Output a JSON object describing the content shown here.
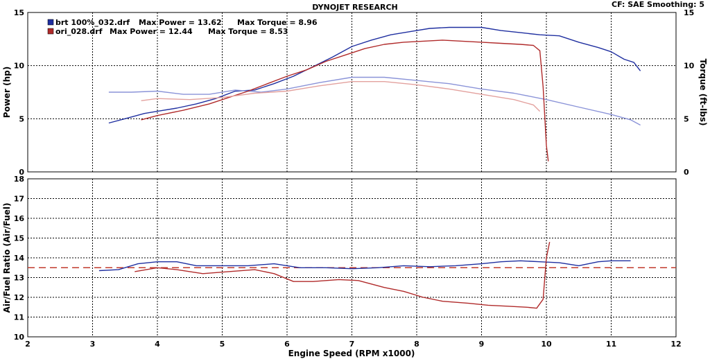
{
  "header": {
    "title": "DYNOJET RESEARCH",
    "settings": "CF: SAE  Smoothing: 5"
  },
  "legend": [
    {
      "file": "brt 100%_032.drf",
      "power_text": "Max Power = 13.62",
      "torque_text": "Max Torque = 8.96",
      "color": "#1f2fa0"
    },
    {
      "file": "ori_028.drf",
      "power_text": "Max Power = 12.44",
      "torque_text": "Max Torque = 8.53",
      "color": "#b02a2a"
    }
  ],
  "axes": {
    "power_label": "Power (hp)",
    "torque_label": "Torque (ft-lbs)",
    "afr_label": "Air/Fuel Ratio (Air/Fuel)",
    "x_label": "Engine Speed (RPM x1000)"
  },
  "chart_data": [
    {
      "type": "line",
      "panel": "power-torque",
      "xlabel": "Engine Speed (RPM x1000)",
      "ylabel": "Power (hp)",
      "y2label": "Torque (ft-lbs)",
      "xlim": [
        2,
        12
      ],
      "ylim": [
        0,
        15
      ],
      "y2lim": [
        0,
        15
      ],
      "xticks": [
        2,
        3,
        4,
        5,
        6,
        7,
        8,
        9,
        10,
        11,
        12
      ],
      "yticks": [
        0,
        5,
        10,
        15
      ],
      "y2ticks": [
        0,
        5,
        10,
        15
      ],
      "grid": true,
      "series": [
        {
          "name": "brt 100%_032.drf",
          "measure": "power",
          "color": "#1f2fa0",
          "x": [
            3.25,
            3.5,
            3.8,
            4.0,
            4.3,
            4.6,
            4.9,
            5.2,
            5.5,
            5.8,
            6.1,
            6.4,
            6.7,
            7.0,
            7.3,
            7.6,
            7.9,
            8.2,
            8.5,
            8.8,
            9.0,
            9.3,
            9.6,
            9.9,
            10.2,
            10.5,
            10.8,
            11.0,
            11.2,
            11.35,
            11.45
          ],
          "y": [
            4.6,
            5.0,
            5.5,
            5.7,
            6.0,
            6.4,
            6.9,
            7.6,
            7.7,
            8.3,
            9.0,
            9.9,
            10.8,
            11.8,
            12.4,
            12.9,
            13.2,
            13.5,
            13.6,
            13.6,
            13.6,
            13.3,
            13.1,
            12.9,
            12.8,
            12.2,
            11.7,
            11.3,
            10.6,
            10.3,
            9.5
          ]
        },
        {
          "name": "brt 100%_032.drf",
          "measure": "torque",
          "color": "#8a93d8",
          "x": [
            3.25,
            3.6,
            4.0,
            4.4,
            4.8,
            5.2,
            5.6,
            6.0,
            6.5,
            7.0,
            7.5,
            8.0,
            8.5,
            9.0,
            9.5,
            10.0,
            10.5,
            11.0,
            11.3,
            11.45
          ],
          "y": [
            7.5,
            7.5,
            7.6,
            7.3,
            7.3,
            7.7,
            7.5,
            7.8,
            8.4,
            8.9,
            8.9,
            8.6,
            8.3,
            7.8,
            7.4,
            6.8,
            6.1,
            5.4,
            4.9,
            4.4
          ]
        },
        {
          "name": "ori_028.drf",
          "measure": "power",
          "color": "#b02a2a",
          "x": [
            3.75,
            4.0,
            4.4,
            4.8,
            5.1,
            5.4,
            5.7,
            6.0,
            6.3,
            6.6,
            6.9,
            7.2,
            7.5,
            7.8,
            8.1,
            8.4,
            8.7,
            9.0,
            9.3,
            9.6,
            9.8,
            9.9,
            9.95,
            10.0,
            10.03
          ],
          "y": [
            4.9,
            5.3,
            5.8,
            6.4,
            7.0,
            7.6,
            8.3,
            9.0,
            9.6,
            10.4,
            11.0,
            11.6,
            12.0,
            12.2,
            12.3,
            12.4,
            12.3,
            12.2,
            12.1,
            12.0,
            11.9,
            11.4,
            8.0,
            2.5,
            1.0
          ]
        },
        {
          "name": "ori_028.drf",
          "measure": "torque",
          "color": "#e3a19e",
          "x": [
            3.75,
            4.0,
            4.5,
            5.0,
            5.5,
            6.0,
            6.5,
            7.0,
            7.5,
            8.0,
            8.5,
            9.0,
            9.5,
            9.8,
            9.9
          ],
          "y": [
            6.7,
            6.9,
            6.8,
            7.0,
            7.4,
            7.6,
            8.1,
            8.5,
            8.5,
            8.2,
            7.8,
            7.3,
            6.8,
            6.3,
            5.7
          ]
        }
      ]
    },
    {
      "type": "line",
      "panel": "air-fuel",
      "xlabel": "Engine Speed (RPM x1000)",
      "ylabel": "Air/Fuel Ratio (Air/Fuel)",
      "xlim": [
        2,
        12
      ],
      "ylim": [
        10,
        18
      ],
      "xticks": [
        2,
        3,
        4,
        5,
        6,
        7,
        8,
        9,
        10,
        11,
        12
      ],
      "yticks": [
        10,
        11,
        12,
        13,
        14,
        15,
        16,
        17,
        18
      ],
      "grid": true,
      "reference_line": {
        "y": 13.5,
        "color": "#c0392b",
        "style": "dashed"
      },
      "series": [
        {
          "name": "brt 100%_032.drf",
          "color": "#1f2fa0",
          "x": [
            3.1,
            3.4,
            3.7,
            4.0,
            4.3,
            4.6,
            5.0,
            5.4,
            5.8,
            6.2,
            6.6,
            7.0,
            7.4,
            7.8,
            8.2,
            8.6,
            9.0,
            9.3,
            9.6,
            9.9,
            10.2,
            10.5,
            10.8,
            11.0,
            11.3
          ],
          "y": [
            13.35,
            13.4,
            13.7,
            13.8,
            13.8,
            13.6,
            13.6,
            13.6,
            13.7,
            13.5,
            13.5,
            13.45,
            13.5,
            13.6,
            13.55,
            13.6,
            13.7,
            13.8,
            13.85,
            13.8,
            13.75,
            13.6,
            13.8,
            13.85,
            13.85
          ]
        },
        {
          "name": "ori_028.drf",
          "color": "#b02a2a",
          "x": [
            3.65,
            4.0,
            4.3,
            4.7,
            5.1,
            5.5,
            5.8,
            6.1,
            6.4,
            6.8,
            7.1,
            7.5,
            7.8,
            8.1,
            8.4,
            8.8,
            9.1,
            9.4,
            9.7,
            9.85,
            9.95,
            10.0,
            10.05
          ],
          "y": [
            13.3,
            13.5,
            13.4,
            13.2,
            13.3,
            13.4,
            13.2,
            12.8,
            12.8,
            12.9,
            12.85,
            12.5,
            12.3,
            12.0,
            11.8,
            11.7,
            11.6,
            11.55,
            11.5,
            11.45,
            11.9,
            14.0,
            14.8
          ]
        }
      ]
    }
  ]
}
